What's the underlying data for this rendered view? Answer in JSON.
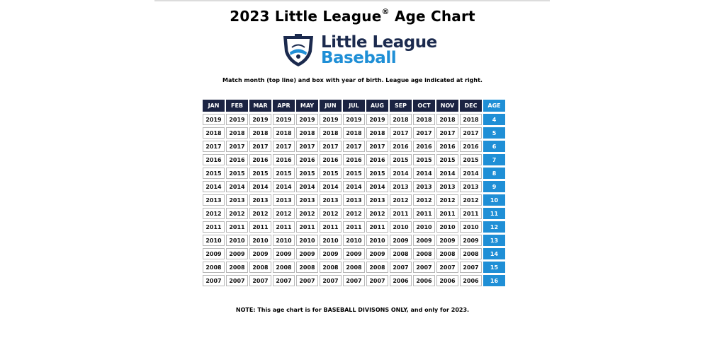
{
  "title": {
    "main": "2023 Little League",
    "reg": "®",
    "suffix": " Age Chart"
  },
  "logo": {
    "line1": "Little League",
    "line2": "Baseball"
  },
  "instructions": "Match month (top line) and box with year of birth. League age indicated at right.",
  "table": {
    "months": [
      "JAN",
      "FEB",
      "MAR",
      "APR",
      "MAY",
      "JUN",
      "JUL",
      "AUG",
      "SEP",
      "OCT",
      "NOV",
      "DEC"
    ],
    "age_header": "AGE",
    "rows": [
      {
        "years": [
          "2019",
          "2019",
          "2019",
          "2019",
          "2019",
          "2019",
          "2019",
          "2019",
          "2018",
          "2018",
          "2018",
          "2018"
        ],
        "age": "4"
      },
      {
        "years": [
          "2018",
          "2018",
          "2018",
          "2018",
          "2018",
          "2018",
          "2018",
          "2018",
          "2017",
          "2017",
          "2017",
          "2017"
        ],
        "age": "5"
      },
      {
        "years": [
          "2017",
          "2017",
          "2017",
          "2017",
          "2017",
          "2017",
          "2017",
          "2017",
          "2016",
          "2016",
          "2016",
          "2016"
        ],
        "age": "6"
      },
      {
        "years": [
          "2016",
          "2016",
          "2016",
          "2016",
          "2016",
          "2016",
          "2016",
          "2016",
          "2015",
          "2015",
          "2015",
          "2015"
        ],
        "age": "7"
      },
      {
        "years": [
          "2015",
          "2015",
          "2015",
          "2015",
          "2015",
          "2015",
          "2015",
          "2015",
          "2014",
          "2014",
          "2014",
          "2014"
        ],
        "age": "8"
      },
      {
        "years": [
          "2014",
          "2014",
          "2014",
          "2014",
          "2014",
          "2014",
          "2014",
          "2014",
          "2013",
          "2013",
          "2013",
          "2013"
        ],
        "age": "9"
      },
      {
        "years": [
          "2013",
          "2013",
          "2013",
          "2013",
          "2013",
          "2013",
          "2013",
          "2013",
          "2012",
          "2012",
          "2012",
          "2012"
        ],
        "age": "10"
      },
      {
        "years": [
          "2012",
          "2012",
          "2012",
          "2012",
          "2012",
          "2012",
          "2012",
          "2012",
          "2011",
          "2011",
          "2011",
          "2011"
        ],
        "age": "11"
      },
      {
        "years": [
          "2011",
          "2011",
          "2011",
          "2011",
          "2011",
          "2011",
          "2011",
          "2011",
          "2010",
          "2010",
          "2010",
          "2010"
        ],
        "age": "12"
      },
      {
        "years": [
          "2010",
          "2010",
          "2010",
          "2010",
          "2010",
          "2010",
          "2010",
          "2010",
          "2009",
          "2009",
          "2009",
          "2009"
        ],
        "age": "13"
      },
      {
        "years": [
          "2009",
          "2009",
          "2009",
          "2009",
          "2009",
          "2009",
          "2009",
          "2009",
          "2008",
          "2008",
          "2008",
          "2008"
        ],
        "age": "14"
      },
      {
        "years": [
          "2008",
          "2008",
          "2008",
          "2008",
          "2008",
          "2008",
          "2008",
          "2008",
          "2007",
          "2007",
          "2007",
          "2007"
        ],
        "age": "15"
      },
      {
        "years": [
          "2007",
          "2007",
          "2007",
          "2007",
          "2007",
          "2007",
          "2007",
          "2007",
          "2006",
          "2006",
          "2006",
          "2006"
        ],
        "age": "16"
      }
    ]
  },
  "note": "NOTE: This age chart is for BASEBALL DIVISONS ONLY, and only for 2023.",
  "colors": {
    "navy": "#1b2342",
    "blue": "#1f8fd6",
    "logo_navy": "#1b2a4e"
  },
  "icons": {
    "logo_emblem": "little-league-keystone-emblem-icon"
  }
}
